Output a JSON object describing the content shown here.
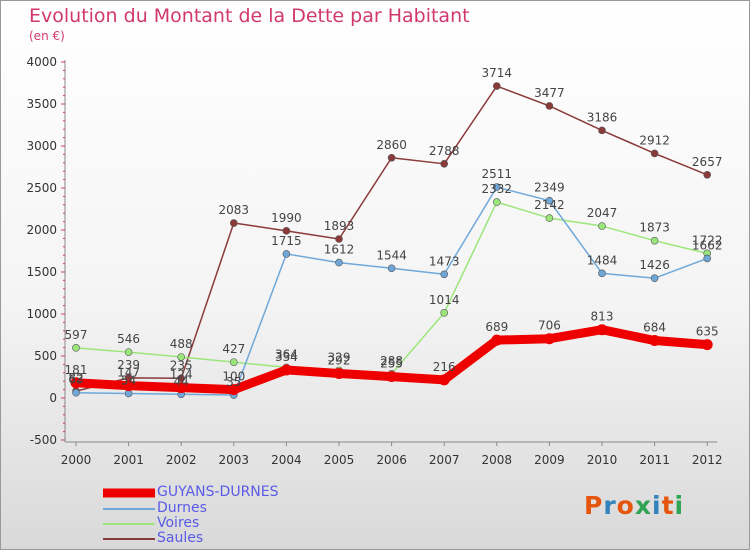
{
  "header": {
    "title": "Evolution du Montant de la Dette par Habitant",
    "subtitle": "(en €)"
  },
  "logo": {
    "text": "Proxiti",
    "colors": [
      "#e6550d",
      "#3182bd",
      "#e6550d",
      "#31a354",
      "#3182bd",
      "#e6550d",
      "#31a354"
    ]
  },
  "chart_data": {
    "type": "line",
    "title": "Evolution du Montant de la Dette par Habitant",
    "subtitle": "(en €)",
    "xlabel": "",
    "ylabel": "",
    "categories": [
      "2000",
      "2001",
      "2002",
      "2003",
      "2004",
      "2005",
      "2006",
      "2007",
      "2008",
      "2009",
      "2010",
      "2011",
      "2012"
    ],
    "ylim": [
      -500,
      4000
    ],
    "yticks": [
      -500,
      0,
      500,
      1000,
      1500,
      2000,
      2500,
      3000,
      3500,
      4000
    ],
    "grid": false,
    "legend_position": "bottom-left",
    "series": [
      {
        "name": "GUYANS-DURNES",
        "color": "#ee0000",
        "width": 9,
        "values": [
          181,
          147,
          124,
          100,
          334,
          292,
          255,
          216,
          689,
          706,
          813,
          684,
          635
        ]
      },
      {
        "name": "Durnes",
        "color": "#6fa8d8",
        "width": 1.5,
        "values": [
          63,
          54,
          44,
          35,
          1715,
          1612,
          1544,
          1473,
          2511,
          2349,
          1484,
          1426,
          1662
        ]
      },
      {
        "name": "Voires",
        "color": "#9be67a",
        "width": 1.5,
        "values": [
          597,
          546,
          488,
          427,
          364,
          329,
          288,
          1014,
          2332,
          2142,
          2047,
          1873,
          1722
        ]
      },
      {
        "name": "Saules",
        "color": "#8b3a3a",
        "width": 1.5,
        "values": [
          82,
          239,
          235,
          2083,
          1990,
          1893,
          2860,
          2788,
          3714,
          3477,
          3186,
          2912,
          2657
        ]
      }
    ]
  }
}
